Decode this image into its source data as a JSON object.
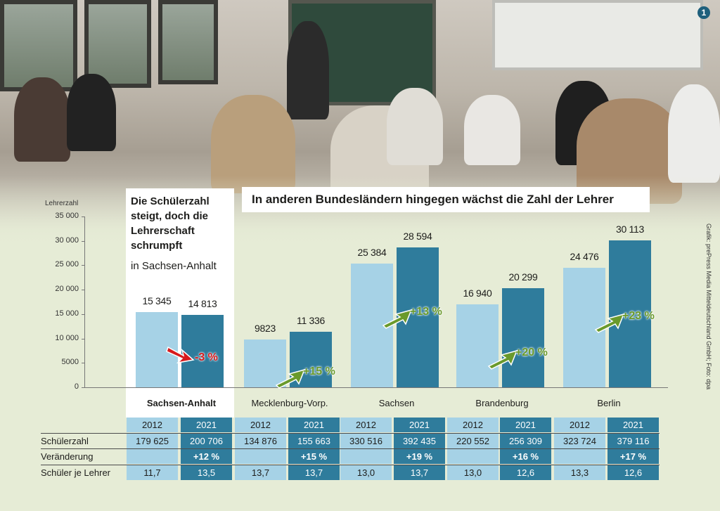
{
  "badge": "1",
  "chart_data": {
    "type": "bar",
    "title": "In anderen Bundesländern hingegen wächst die Zahl der Lehrer",
    "highlight_title": "Die Schülerzahl steigt, doch die Lehrerschaft schrumpft",
    "highlight_subtitle": "in Sachsen-Anhalt",
    "ylabel": "Lehrerzahl",
    "ylim": [
      0,
      35000
    ],
    "yticks": [
      "35 000",
      "30 000",
      "25 000",
      "20 000",
      "15 000",
      "10 000",
      "5000",
      "0"
    ],
    "categories": [
      "Sachsen-Anhalt",
      "Mecklenburg-Vorp.",
      "Sachsen",
      "Brandenburg",
      "Berlin"
    ],
    "series": [
      {
        "name": "2012",
        "values": [
          15345,
          9823,
          25384,
          16940,
          24476
        ],
        "labels": [
          "15 345",
          "9823",
          "25 384",
          "16 940",
          "24 476"
        ]
      },
      {
        "name": "2021",
        "values": [
          14813,
          11336,
          28594,
          20299,
          30113
        ],
        "labels": [
          "14 813",
          "11 336",
          "28 594",
          "20 299",
          "30 113"
        ]
      }
    ],
    "changes": [
      "-3 %",
      "+15 %",
      "+13 %",
      "+20 %",
      "+23 %"
    ],
    "change_colors": [
      "#d7191c",
      "#6a9a2c",
      "#6a9a2c",
      "#6a9a2c",
      "#6a9a2c"
    ],
    "colors": {
      "c2012": "#a6d2e6",
      "c2021": "#2f7c9c"
    }
  },
  "credit": "Grafik: prePress Media Mitteldeutschland GmbH; Foto: dpa",
  "table": {
    "years": [
      "2012",
      "2021",
      "2012",
      "2021",
      "2012",
      "2021",
      "2012",
      "2021",
      "2012",
      "2021"
    ],
    "rows": [
      {
        "label": "Schülerzahl",
        "cells": [
          "179 625",
          "200 706",
          "134 876",
          "155 663",
          "330 516",
          "392 435",
          "220 552",
          "256 309",
          "323 724",
          "379 116"
        ]
      },
      {
        "label": "Veränderung",
        "cells": [
          "",
          "+12 %",
          "",
          "+15 %",
          "",
          "+19 %",
          "",
          "+16 %",
          "",
          "+17 %"
        ]
      },
      {
        "label": "Schüler je Lehrer",
        "cells": [
          "11,7",
          "13,5",
          "13,7",
          "13,7",
          "13,0",
          "13,7",
          "13,0",
          "12,6",
          "13,3",
          "12,6"
        ]
      }
    ]
  }
}
